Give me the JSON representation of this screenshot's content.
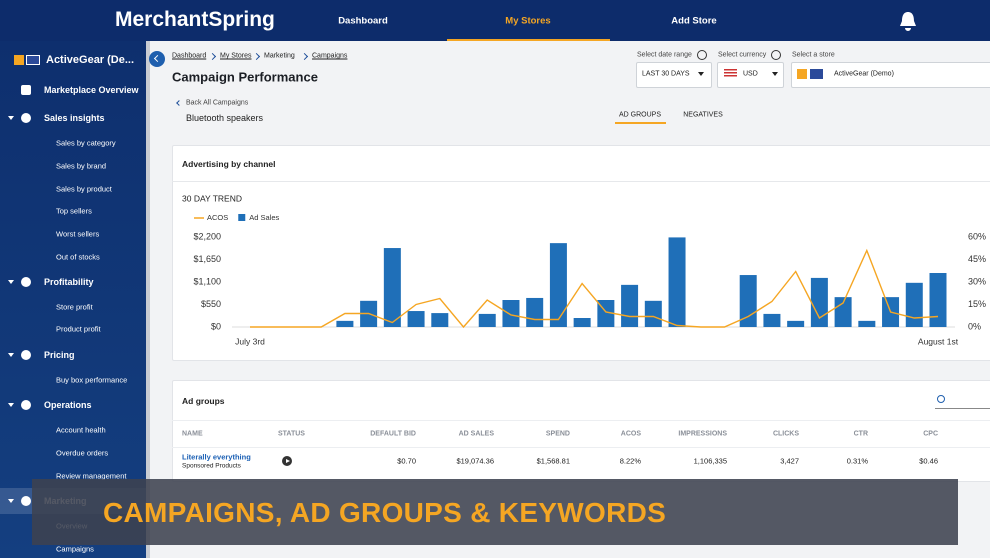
{
  "nav": {
    "logo": "MerchantSpring",
    "items": [
      "Dashboard",
      "My Stores",
      "Add Store"
    ]
  },
  "sidebar": {
    "store": "ActiveGear (De...",
    "overview": "Marketplace Overview",
    "sections": [
      {
        "title": "Sales insights",
        "items": [
          "Sales by category",
          "Sales by brand",
          "Sales by product",
          "Top sellers",
          "Worst sellers",
          "Out of stocks"
        ]
      },
      {
        "title": "Profitability",
        "items": [
          "Store profit",
          "Product profit"
        ]
      },
      {
        "title": "Pricing",
        "items": [
          "Buy box performance"
        ]
      },
      {
        "title": "Operations",
        "items": [
          "Account health",
          "Overdue orders",
          "Review management"
        ]
      },
      {
        "title": "Marketing",
        "items": [
          "Overview",
          "Campaigns"
        ]
      }
    ]
  },
  "header": {
    "breadcrumb": [
      "Dashboard",
      "My Stores",
      "Marketing",
      "Campaigns"
    ],
    "title": "Campaign Performance",
    "back": "Back All Campaigns",
    "campaign": "Bluetooth speakers"
  },
  "filters": [
    {
      "label": "Select date range",
      "value": "LAST 30 DAYS"
    },
    {
      "label": "Select currency",
      "value": "USD"
    },
    {
      "label": "Select a store",
      "value": "ActiveGear (Demo)"
    }
  ],
  "tabs": [
    "AD GROUPS",
    "NEGATIVES"
  ],
  "chart_card": {
    "title": "Advertising by channel"
  },
  "chart_data": {
    "type": "bar",
    "title": "30 DAY TREND",
    "categories": [
      "July 3rd",
      null,
      null,
      null,
      null,
      null,
      null,
      null,
      null,
      null,
      null,
      null,
      null,
      null,
      null,
      null,
      null,
      null,
      null,
      null,
      null,
      null,
      null,
      null,
      null,
      null,
      null,
      null,
      null,
      "August 1st"
    ],
    "series": [
      {
        "name": "ACOS",
        "type": "line",
        "axis": "y2",
        "color": "#f5a623",
        "values": [
          0,
          0,
          0,
          0,
          9,
          9,
          3,
          15,
          19,
          0,
          18,
          8,
          5,
          5,
          29,
          10,
          7,
          7,
          1,
          0,
          0,
          7,
          17,
          37,
          6,
          16,
          51,
          10,
          6,
          7
        ]
      },
      {
        "name": "Ad Sales",
        "type": "bar",
        "color": "#1f6fb8",
        "values": [
          0,
          0,
          0,
          0,
          150,
          640,
          1930,
          390,
          340,
          0,
          320,
          660,
          710,
          2050,
          220,
          660,
          1030,
          640,
          2190,
          0,
          0,
          1270,
          320,
          150,
          1200,
          730,
          150,
          730,
          1080,
          1320
        ]
      }
    ],
    "ylim": [
      0,
      2200
    ],
    "yticks": [
      {
        "value": 0,
        "label": "$0"
      },
      {
        "value": 550,
        "label": "$550"
      },
      {
        "value": 1100,
        "label": "$1,100"
      },
      {
        "value": 1650,
        "label": "$1,650"
      },
      {
        "value": 2200,
        "label": "$2,200"
      }
    ],
    "y2lim": [
      0,
      60
    ],
    "y2ticks": [
      {
        "value": 0,
        "label": "0%"
      },
      {
        "value": 15,
        "label": "15%"
      },
      {
        "value": 30,
        "label": "30%"
      },
      {
        "value": 45,
        "label": "45%"
      },
      {
        "value": 60,
        "label": "60%"
      }
    ],
    "grid": false,
    "legend": "top-left"
  },
  "table": {
    "title": "Ad groups",
    "columns": [
      "NAME",
      "STATUS",
      "DEFAULT BID",
      "AD SALES",
      "SPEND",
      "ACOS",
      "IMPRESSIONS",
      "CLICKS",
      "CTR",
      "CPC"
    ],
    "rows": [
      [
        [
          "Literally everything",
          "Sponsored Products"
        ],
        null,
        "$0.70",
        "$19,074.36",
        "$1,568.81",
        "8.22%",
        "1,106,335",
        "3,427",
        "0.31%",
        "$0.46"
      ]
    ]
  },
  "banner": "CAMPAIGNS, AD GROUPS & KEYWORDS"
}
